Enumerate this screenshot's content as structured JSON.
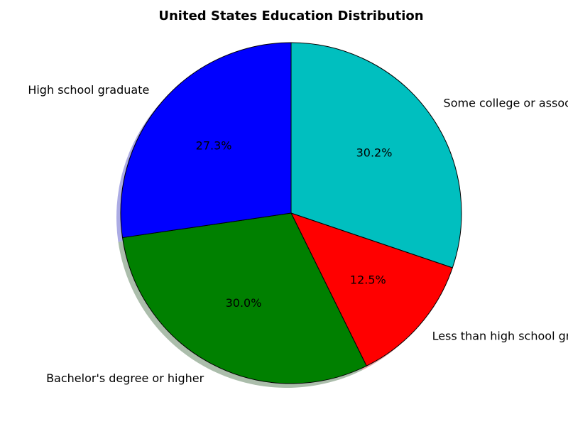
{
  "chart_data": {
    "type": "pie",
    "title": "United States Education Distribution",
    "slices": [
      {
        "label": "Some college or associate's degree",
        "value": 30.2,
        "pct_label": "30.2%",
        "color": "#00bfbf"
      },
      {
        "label": "Less than high school graduate",
        "value": 12.5,
        "pct_label": "12.5%",
        "color": "#ff0000"
      },
      {
        "label": "Bachelor's degree or higher",
        "value": 30.0,
        "pct_label": "30.0%",
        "color": "#008000"
      },
      {
        "label": "High school graduate",
        "value": 27.3,
        "pct_label": "27.3%",
        "color": "#0000ff"
      }
    ],
    "start_angle_deg": 90,
    "direction": "clockwise",
    "shadow": true
  }
}
